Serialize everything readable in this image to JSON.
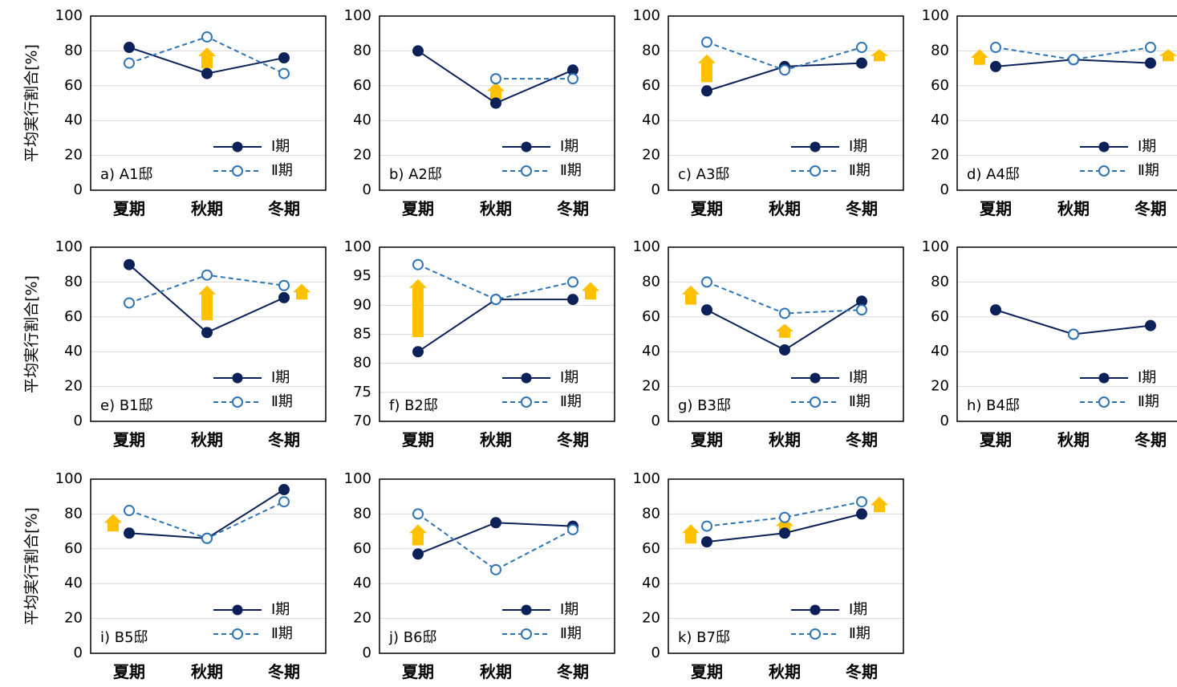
{
  "figure": {
    "y_axis_label": "平均実行割合[%]",
    "colors": {
      "period1": "#0b2158",
      "period2": "#2e75b6",
      "arrow": "#ffc000",
      "grid": "#d9d9d9",
      "frame": "#000000"
    }
  },
  "chart_data": [
    {
      "panel_label": "a) A1邸",
      "type": "line",
      "categories": [
        "夏期",
        "秋期",
        "冬期"
      ],
      "ylim": [
        0,
        100
      ],
      "yticks": [
        0,
        20,
        40,
        60,
        80,
        100
      ],
      "series": [
        {
          "name": "Ⅰ期",
          "values": [
            82,
            67,
            76
          ]
        },
        {
          "name": "Ⅱ期",
          "values": [
            73,
            88,
            67
          ]
        }
      ],
      "increase_arrows": [
        {
          "category": "秋期",
          "from": 70,
          "to": 82
        }
      ]
    },
    {
      "panel_label": "b) A2邸",
      "type": "line",
      "categories": [
        "夏期",
        "秋期",
        "冬期"
      ],
      "ylim": [
        0,
        100
      ],
      "yticks": [
        0,
        20,
        40,
        60,
        80,
        100
      ],
      "series": [
        {
          "name": "Ⅰ期",
          "values": [
            80,
            50,
            69
          ]
        },
        {
          "name": "Ⅱ期",
          "values": [
            null,
            64,
            64
          ]
        }
      ],
      "increase_arrows": [
        {
          "category": "秋期",
          "from": 52,
          "to": 62
        }
      ]
    },
    {
      "panel_label": "c) A3邸",
      "type": "line",
      "categories": [
        "夏期",
        "秋期",
        "冬期"
      ],
      "ylim": [
        0,
        100
      ],
      "yticks": [
        0,
        20,
        40,
        60,
        80,
        100
      ],
      "series": [
        {
          "name": "Ⅰ期",
          "values": [
            57,
            71,
            73
          ]
        },
        {
          "name": "Ⅱ期",
          "values": [
            85,
            69,
            82
          ]
        }
      ],
      "increase_arrows": [
        {
          "category": "夏期",
          "from": 62,
          "to": 78
        },
        {
          "category": "冬期",
          "from": 74,
          "to": 81
        }
      ]
    },
    {
      "panel_label": "d) A4邸",
      "type": "line",
      "categories": [
        "夏期",
        "秋期",
        "冬期"
      ],
      "ylim": [
        0,
        100
      ],
      "yticks": [
        0,
        20,
        40,
        60,
        80,
        100
      ],
      "series": [
        {
          "name": "Ⅰ期",
          "values": [
            71,
            75,
            73
          ]
        },
        {
          "name": "Ⅱ期",
          "values": [
            82,
            75,
            82
          ]
        }
      ],
      "increase_arrows": [
        {
          "category": "夏期",
          "from": 72,
          "to": 81
        },
        {
          "category": "冬期",
          "from": 74,
          "to": 81
        }
      ]
    },
    {
      "panel_label": "e) B1邸",
      "type": "line",
      "categories": [
        "夏期",
        "秋期",
        "冬期"
      ],
      "ylim": [
        0,
        100
      ],
      "yticks": [
        0,
        20,
        40,
        60,
        80,
        100
      ],
      "series": [
        {
          "name": "Ⅰ期",
          "values": [
            90,
            51,
            71
          ]
        },
        {
          "name": "Ⅱ期",
          "values": [
            68,
            84,
            78
          ]
        }
      ],
      "increase_arrows": [
        {
          "category": "秋期",
          "from": 58,
          "to": 78
        },
        {
          "category": "冬期",
          "from": 70,
          "to": 79
        }
      ]
    },
    {
      "panel_label": "f) B2邸",
      "type": "line",
      "categories": [
        "夏期",
        "秋期",
        "冬期"
      ],
      "ylim": [
        70,
        100
      ],
      "yticks": [
        70,
        75,
        80,
        85,
        90,
        95,
        100
      ],
      "series": [
        {
          "name": "Ⅰ期",
          "values": [
            82,
            91,
            91
          ]
        },
        {
          "name": "Ⅱ期",
          "values": [
            97,
            91,
            94
          ]
        }
      ],
      "increase_arrows": [
        {
          "category": "夏期",
          "from": 84.5,
          "to": 94.5
        },
        {
          "category": "冬期",
          "from": 91,
          "to": 94
        }
      ]
    },
    {
      "panel_label": "g) B3邸",
      "type": "line",
      "categories": [
        "夏期",
        "秋期",
        "冬期"
      ],
      "ylim": [
        0,
        100
      ],
      "yticks": [
        0,
        20,
        40,
        60,
        80,
        100
      ],
      "series": [
        {
          "name": "Ⅰ期",
          "values": [
            64,
            41,
            69
          ]
        },
        {
          "name": "Ⅱ期",
          "values": [
            80,
            62,
            64
          ]
        }
      ],
      "increase_arrows": [
        {
          "category": "夏期",
          "from": 67,
          "to": 78
        },
        {
          "category": "秋期",
          "from": 48,
          "to": 56
        }
      ]
    },
    {
      "panel_label": "h) B4邸",
      "type": "line",
      "categories": [
        "夏期",
        "秋期",
        "冬期"
      ],
      "ylim": [
        0,
        100
      ],
      "yticks": [
        0,
        20,
        40,
        60,
        80,
        100
      ],
      "series": [
        {
          "name": "Ⅰ期",
          "values": [
            64,
            50,
            55
          ]
        },
        {
          "name": "Ⅱ期",
          "values": [
            null,
            50,
            null
          ]
        }
      ],
      "increase_arrows": []
    },
    {
      "panel_label": "i) B5邸",
      "type": "line",
      "categories": [
        "夏期",
        "秋期",
        "冬期"
      ],
      "ylim": [
        0,
        100
      ],
      "yticks": [
        0,
        20,
        40,
        60,
        80,
        100
      ],
      "series": [
        {
          "name": "Ⅰ期",
          "values": [
            69,
            66,
            94
          ]
        },
        {
          "name": "Ⅱ期",
          "values": [
            82,
            66,
            87
          ]
        }
      ],
      "increase_arrows": [
        {
          "category": "夏期",
          "from": 70,
          "to": 80
        }
      ]
    },
    {
      "panel_label": "j) B6邸",
      "type": "line",
      "categories": [
        "夏期",
        "秋期",
        "冬期"
      ],
      "ylim": [
        0,
        100
      ],
      "yticks": [
        0,
        20,
        40,
        60,
        80,
        100
      ],
      "series": [
        {
          "name": "Ⅰ期",
          "values": [
            57,
            75,
            73
          ]
        },
        {
          "name": "Ⅱ期",
          "values": [
            80,
            48,
            71
          ]
        }
      ],
      "increase_arrows": [
        {
          "category": "夏期",
          "from": 62,
          "to": 74
        }
      ]
    },
    {
      "panel_label": "k) B7邸",
      "type": "line",
      "categories": [
        "夏期",
        "秋期",
        "冬期"
      ],
      "ylim": [
        0,
        100
      ],
      "yticks": [
        0,
        20,
        40,
        60,
        80,
        100
      ],
      "series": [
        {
          "name": "Ⅰ期",
          "values": [
            64,
            69,
            80
          ]
        },
        {
          "name": "Ⅱ期",
          "values": [
            73,
            78,
            87
          ]
        }
      ],
      "increase_arrows": [
        {
          "category": "夏期",
          "from": 63,
          "to": 74
        },
        {
          "category": "秋期",
          "from": 69,
          "to": 78
        },
        {
          "category": "冬期",
          "from": 81,
          "to": 90
        }
      ]
    }
  ]
}
